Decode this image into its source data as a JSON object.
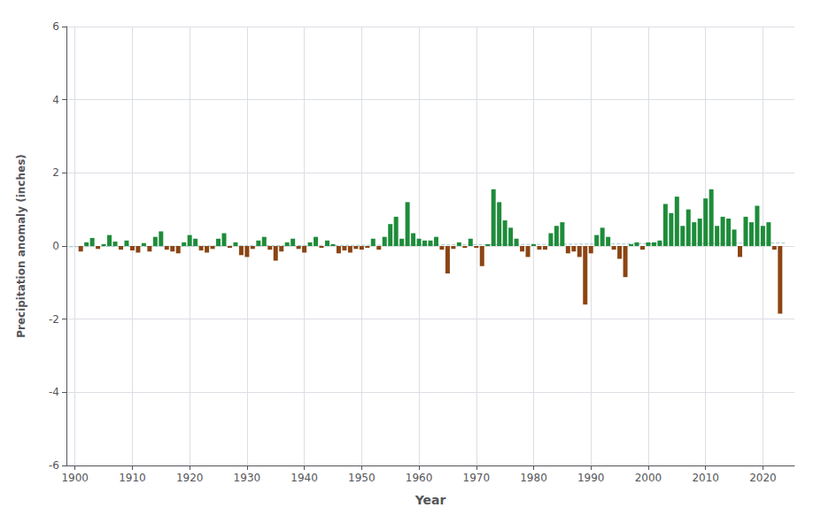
{
  "chart_data": {
    "type": "bar",
    "xlabel": "Year",
    "ylabel": "Precipitation anomaly (inches)",
    "x": [
      1901,
      1902,
      1903,
      1904,
      1905,
      1906,
      1907,
      1908,
      1909,
      1910,
      1911,
      1912,
      1913,
      1914,
      1915,
      1916,
      1917,
      1918,
      1919,
      1920,
      1921,
      1922,
      1923,
      1924,
      1925,
      1926,
      1927,
      1928,
      1929,
      1930,
      1931,
      1932,
      1933,
      1934,
      1935,
      1936,
      1937,
      1938,
      1939,
      1940,
      1941,
      1942,
      1943,
      1944,
      1945,
      1946,
      1947,
      1948,
      1949,
      1950,
      1951,
      1952,
      1953,
      1954,
      1955,
      1956,
      1957,
      1958,
      1959,
      1960,
      1961,
      1962,
      1963,
      1964,
      1965,
      1966,
      1967,
      1968,
      1969,
      1970,
      1971,
      1972,
      1973,
      1974,
      1975,
      1976,
      1977,
      1978,
      1979,
      1980,
      1981,
      1982,
      1983,
      1984,
      1985,
      1986,
      1987,
      1988,
      1989,
      1990,
      1991,
      1992,
      1993,
      1994,
      1995,
      1996,
      1997,
      1998,
      1999,
      2000,
      2001,
      2002,
      2003,
      2004,
      2005,
      2006,
      2007,
      2008,
      2009,
      2010,
      2011,
      2012,
      2013,
      2014,
      2015,
      2016,
      2017,
      2018,
      2019,
      2020,
      2021,
      2022,
      2023
    ],
    "series": [
      {
        "type": "bar",
        "values": [
          -0.15,
          0.1,
          0.22,
          -0.08,
          0.05,
          0.3,
          0.12,
          -0.1,
          0.15,
          -0.12,
          -0.18,
          0.08,
          -0.15,
          0.25,
          0.4,
          -0.1,
          -0.15,
          -0.2,
          0.1,
          0.3,
          0.2,
          -0.12,
          -0.18,
          -0.08,
          0.2,
          0.35,
          -0.05,
          0.1,
          -0.25,
          -0.3,
          -0.08,
          0.15,
          0.25,
          -0.1,
          -0.4,
          -0.15,
          0.1,
          0.2,
          -0.08,
          -0.18,
          0.1,
          0.25,
          -0.05,
          0.15,
          0.05,
          -0.2,
          -0.12,
          -0.18,
          -0.08,
          -0.1,
          -0.05,
          0.2,
          -0.1,
          0.25,
          0.6,
          0.8,
          0.2,
          1.2,
          0.35,
          0.2,
          0.15,
          0.15,
          0.25,
          -0.1,
          -0.75,
          -0.08,
          0.1,
          -0.05,
          0.2,
          -0.05,
          -0.55,
          0.05,
          1.55,
          1.2,
          0.7,
          0.5,
          0.2,
          -0.15,
          -0.3,
          0.05,
          -0.1,
          -0.1,
          0.35,
          0.55,
          0.65,
          -0.2,
          -0.15,
          -0.3,
          -1.6,
          -0.2,
          0.3,
          0.5,
          0.25,
          -0.1,
          -0.35,
          -0.85,
          0.05,
          0.1,
          -0.1,
          0.1,
          0.1,
          0.15,
          1.15,
          0.9,
          1.35,
          0.55,
          1.0,
          0.65,
          0.75,
          1.3,
          1.55,
          0.55,
          0.8,
          0.75,
          0.45,
          -0.3,
          0.8,
          0.65,
          1.1,
          0.55,
          0.65,
          -0.1,
          -1.85
        ],
        "colors": [
          "#8B4513",
          "#1e8c3a",
          "#1e8c3a",
          "#8B4513",
          "#1e8c3a",
          "#1e8c3a",
          "#1e8c3a",
          "#8B4513",
          "#1e8c3a",
          "#8B4513",
          "#8B4513",
          "#1e8c3a",
          "#8B4513",
          "#1e8c3a",
          "#1e8c3a",
          "#8B4513",
          "#8B4513",
          "#8B4513",
          "#1e8c3a",
          "#1e8c3a",
          "#1e8c3a",
          "#8B4513",
          "#8B4513",
          "#8B4513",
          "#1e8c3a",
          "#1e8c3a",
          "#8B4513",
          "#1e8c3a",
          "#8B4513",
          "#8B4513",
          "#8B4513",
          "#1e8c3a",
          "#1e8c3a",
          "#8B4513",
          "#8B4513",
          "#8B4513",
          "#1e8c3a",
          "#1e8c3a",
          "#8B4513",
          "#8B4513",
          "#1e8c3a",
          "#1e8c3a",
          "#8B4513",
          "#1e8c3a",
          "#1e8c3a",
          "#8B4513",
          "#8B4513",
          "#8B4513",
          "#8B4513",
          "#8B4513",
          "#8B4513",
          "#1e8c3a",
          "#8B4513",
          "#1e8c3a",
          "#1e8c3a",
          "#1e8c3a",
          "#1e8c3a",
          "#1e8c3a",
          "#1e8c3a",
          "#1e8c3a",
          "#1e8c3a",
          "#1e8c3a",
          "#1e8c3a",
          "#8B4513",
          "#8B4513",
          "#8B4513",
          "#1e8c3a",
          "#8B4513",
          "#1e8c3a",
          "#8B4513",
          "#8B4513",
          "#1e8c3a",
          "#1e8c3a",
          "#1e8c3a",
          "#1e8c3a",
          "#1e8c3a",
          "#1e8c3a",
          "#8B4513",
          "#8B4513",
          "#1e8c3a",
          "#8B4513",
          "#8B4513",
          "#1e8c3a",
          "#1e8c3a",
          "#1e8c3a",
          "#8B4513",
          "#8B4513",
          "#8B4513",
          "#8B4513",
          "#8B4513",
          "#1e8c3a",
          "#1e8c3a",
          "#1e8c3a",
          "#8B4513",
          "#8B4513",
          "#8B4513",
          "#1e8c3a",
          "#1e8c3a",
          "#8B4513",
          "#1e8c3a",
          "#1e8c3a",
          "#1e8c3a",
          "#1e8c3a",
          "#1e8c3a",
          "#1e8c3a",
          "#1e8c3a",
          "#1e8c3a",
          "#1e8c3a",
          "#1e8c3a",
          "#1e8c3a",
          "#1e8c3a",
          "#1e8c3a",
          "#1e8c3a",
          "#1e8c3a",
          "#1e8c3a",
          "#8B4513",
          "#1e8c3a",
          "#1e8c3a",
          "#1e8c3a",
          "#1e8c3a",
          "#1e8c3a",
          "#8B4513",
          "#8B4513"
        ]
      },
      {
        "type": "line",
        "x": [
          1899,
          2024
        ],
        "values": [
          -0.02,
          0.08
        ],
        "color": "#a0c8c8",
        "line_style": "dashed"
      }
    ],
    "xlim": [
      1898.5,
      2025.5
    ],
    "xticks": [
      1900,
      1910,
      1920,
      1930,
      1940,
      1950,
      1960,
      1970,
      1980,
      1990,
      2000,
      2010,
      2020
    ],
    "ylim": [
      -6,
      6
    ],
    "yticks": [
      -6,
      -4,
      -2,
      0,
      2,
      4,
      6
    ],
    "grid": true
  }
}
